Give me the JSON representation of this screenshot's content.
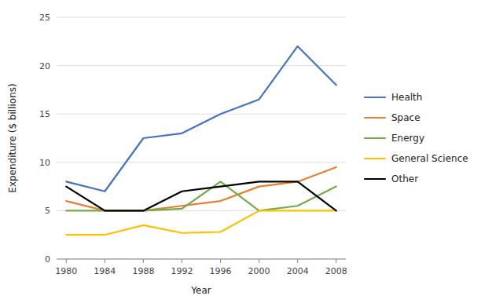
{
  "chart_data": {
    "type": "line",
    "x": [
      1980,
      1984,
      1988,
      1992,
      1996,
      2000,
      2004,
      2008
    ],
    "series": [
      {
        "name": "Health",
        "color": "#4472C4",
        "values": [
          8.0,
          7.0,
          12.5,
          13.0,
          15.0,
          16.5,
          22.0,
          18.0
        ]
      },
      {
        "name": "Space",
        "color": "#ED7D31",
        "values": [
          6.0,
          5.0,
          5.0,
          5.5,
          6.0,
          7.5,
          8.0,
          9.5
        ]
      },
      {
        "name": "Energy",
        "color": "#70AD47",
        "values": [
          5.0,
          5.0,
          5.0,
          5.2,
          8.0,
          5.0,
          5.5,
          7.5
        ]
      },
      {
        "name": "General Science",
        "color": "#FFC000",
        "values": [
          2.5,
          2.5,
          3.5,
          2.7,
          2.8,
          5.0,
          5.0,
          5.0
        ]
      },
      {
        "name": "Other",
        "color": "#000000",
        "values": [
          7.5,
          5.0,
          5.0,
          7.0,
          7.5,
          8.0,
          8.0,
          5.0
        ]
      }
    ],
    "xlabel": "Year",
    "ylabel": "Expenditure ($ billions)",
    "xlim": [
      1979,
      2009
    ],
    "xticks": [
      1980,
      1984,
      1988,
      1992,
      1996,
      2000,
      2004,
      2008
    ],
    "ylim": [
      0,
      25
    ],
    "yticks": [
      0,
      5,
      10,
      15,
      20,
      25
    ],
    "grid": true,
    "legend": "right"
  }
}
